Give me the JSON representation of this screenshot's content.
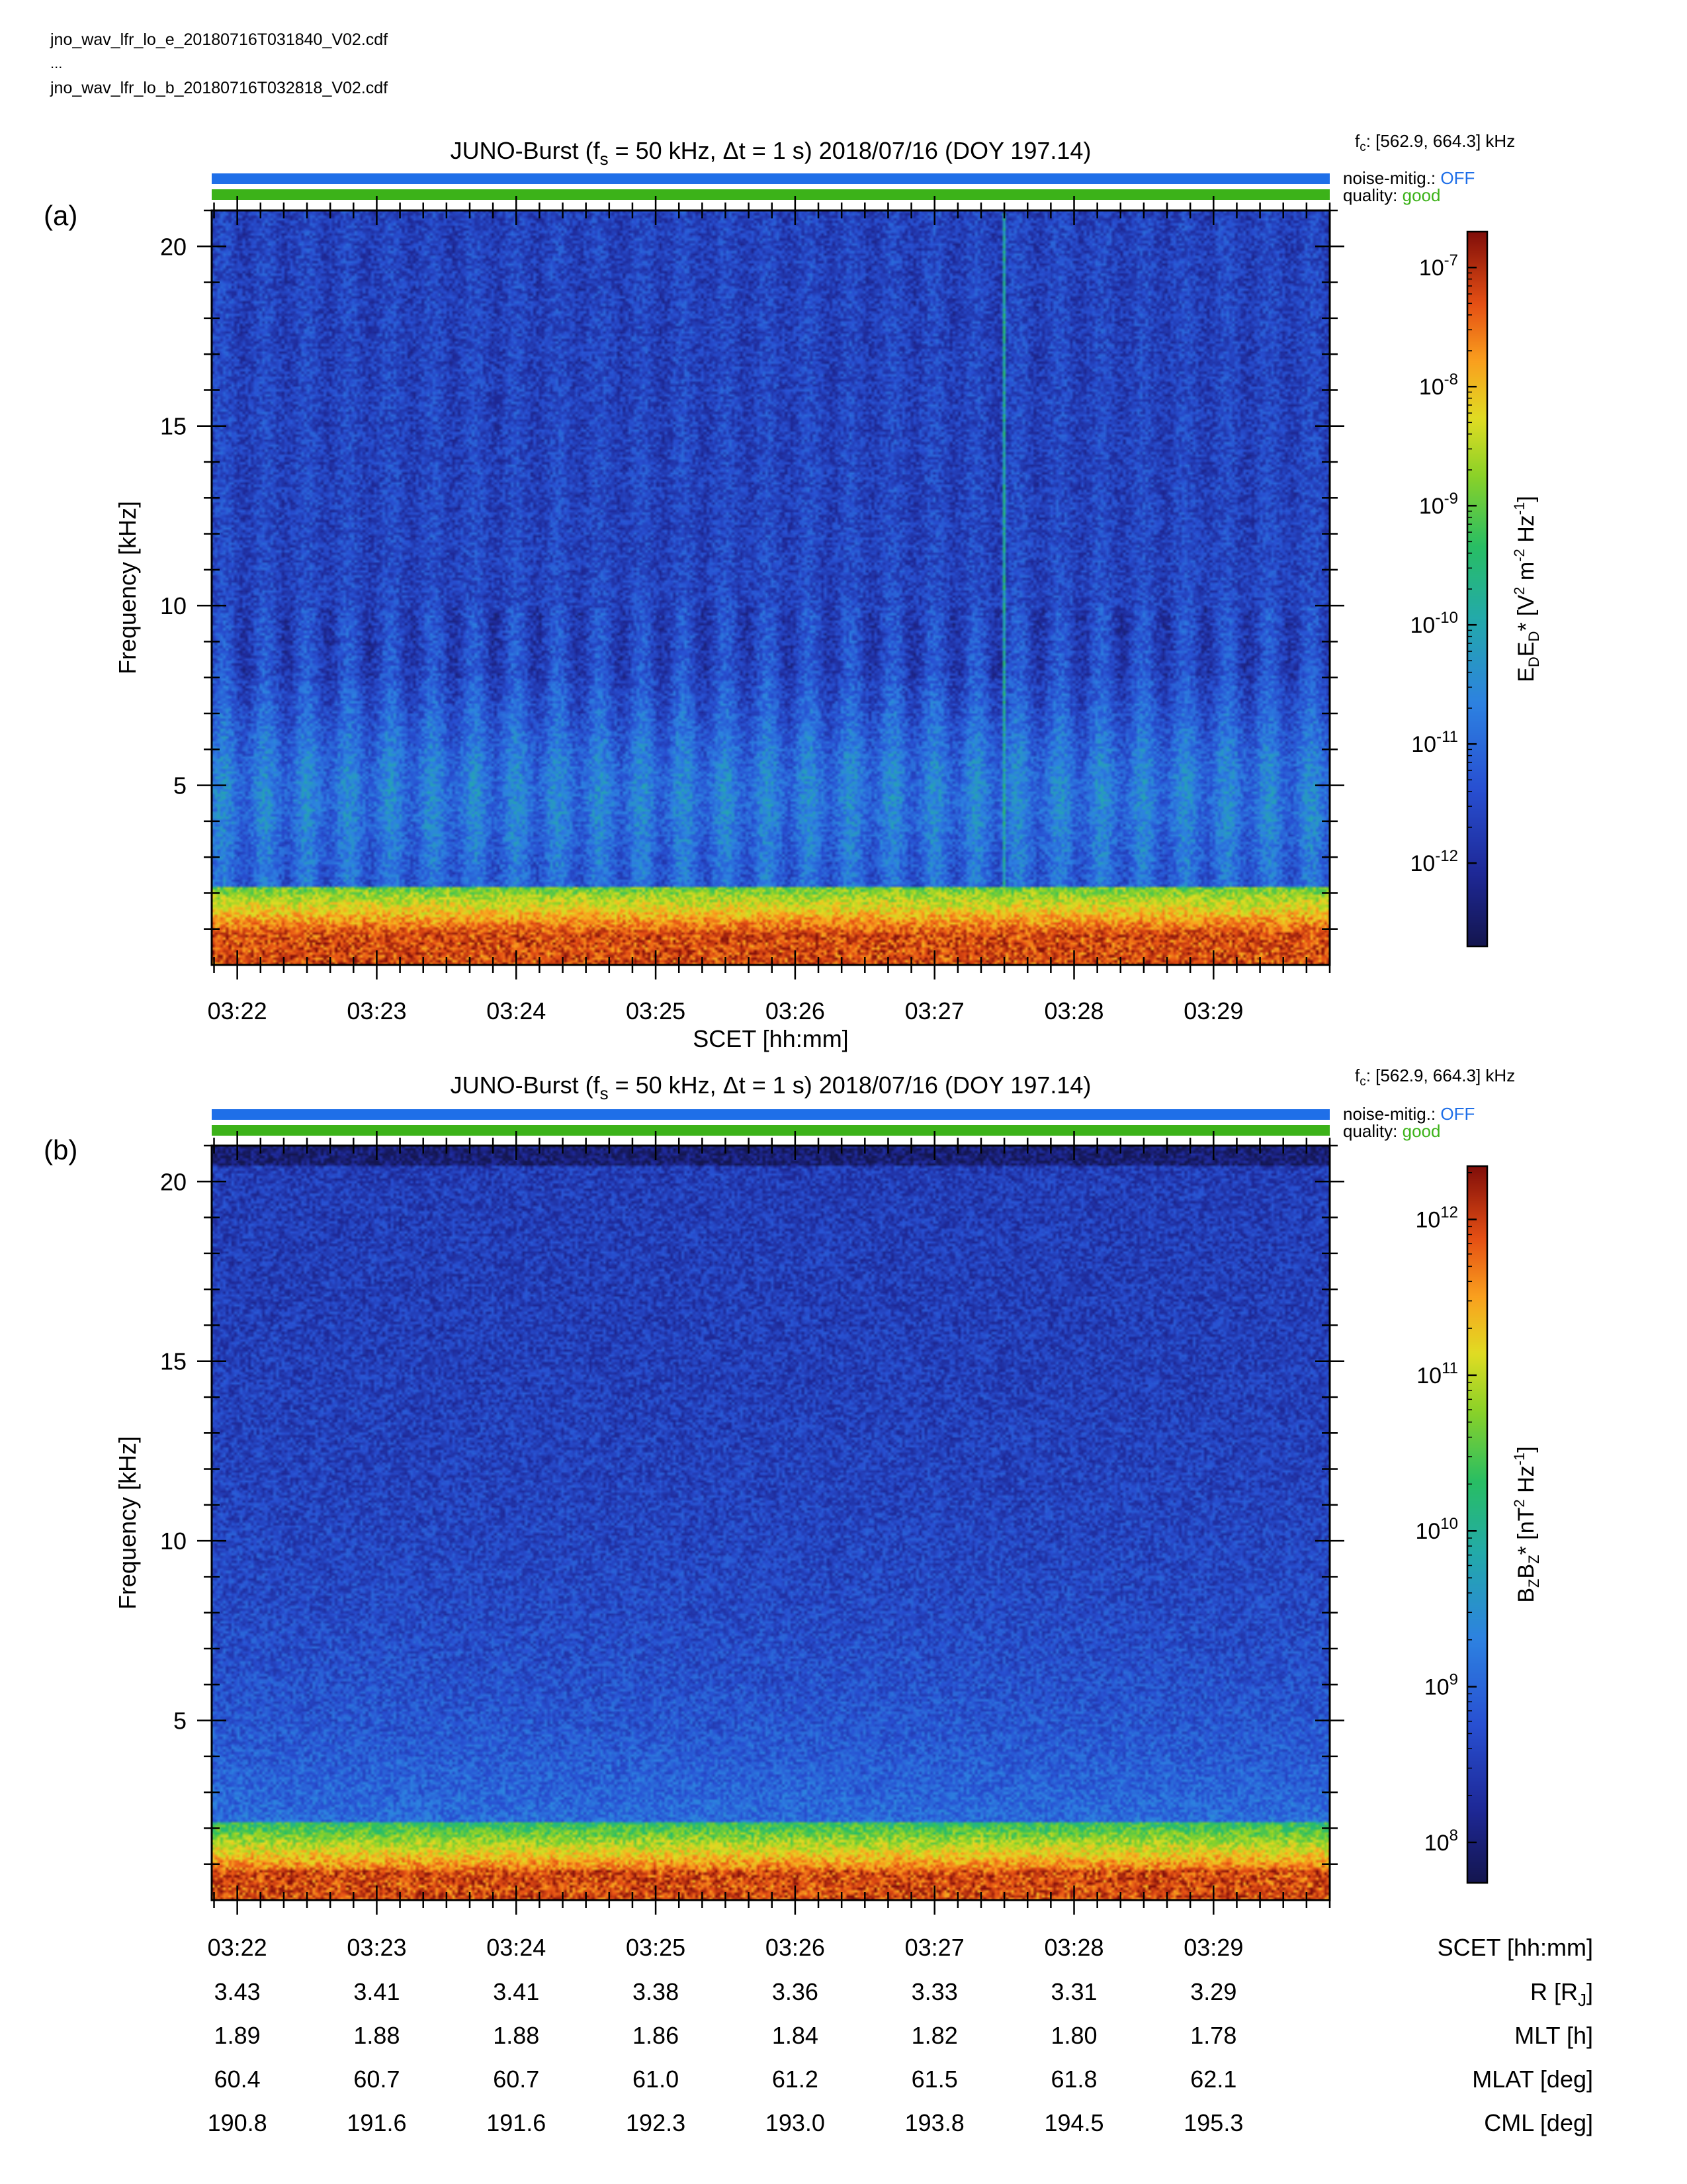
{
  "header": {
    "file_e": "jno_wav_lfr_lo_e_20180716T031840_V02.cdf",
    "ellipsis": "...",
    "file_b": "jno_wav_lfr_lo_b_20180716T032818_V02.cdf"
  },
  "colors": {
    "noise_bar": "#1f6fe8",
    "quality_bar": "#3cb219",
    "off_text": "#1f6fe8",
    "good_text": "#3cb219"
  },
  "chart_data": [
    {
      "type": "heatmap",
      "panel_label": "(a)",
      "title": "JUNO-Burst (fs = 50 kHz, Δt = 1 s)  2018/07/16 (DOY 197.14)",
      "fc": "[562.9, 664.3] kHz",
      "noise_mitig_label": "noise-mitig.:",
      "noise_mitig_value": "OFF",
      "quality_label": "quality:",
      "quality_value": "good",
      "ylabel": "Frequency [kHz]",
      "xlabel": "SCET [hh:mm]",
      "x_ticks": [
        "03:22",
        "03:23",
        "03:24",
        "03:25",
        "03:26",
        "03:27",
        "03:28",
        "03:29"
      ],
      "xlim": [
        "03:21:49",
        "03:29:50"
      ],
      "ylim": [
        0,
        21
      ],
      "y_ticks": [
        5,
        10,
        15,
        20
      ],
      "colorbar_label": "EDED* [V² m⁻² Hz⁻¹]",
      "colorbar_scale": "log",
      "colorbar_range": [
        2e-13,
        2e-07
      ],
      "colorbar_ticks": [
        "10-7",
        "10-8",
        "10-9",
        "10-10",
        "10-11",
        "10-12"
      ]
    },
    {
      "type": "heatmap",
      "panel_label": "(b)",
      "title": "JUNO-Burst (fs = 50 kHz, Δt = 1 s)  2018/07/16 (DOY 197.14)",
      "fc": "[562.9, 664.3] kHz",
      "noise_mitig_label": "noise-mitig.:",
      "noise_mitig_value": "OFF",
      "quality_label": "quality:",
      "quality_value": "good",
      "ylabel": "Frequency [kHz]",
      "xlim": [
        "03:21:49",
        "03:29:50"
      ],
      "ylim": [
        0,
        21
      ],
      "y_ticks": [
        5,
        10,
        15,
        20
      ],
      "colorbar_label": "BZBZ* [nT² Hz⁻¹]",
      "colorbar_scale": "log",
      "colorbar_range": [
        55000000.0,
        2200000000000.0
      ],
      "colorbar_ticks": [
        "1012",
        "1011",
        "1010",
        "109",
        "108"
      ]
    }
  ],
  "ephemeris": {
    "rows": [
      {
        "label": "SCET [hh:mm]",
        "values": [
          "03:22",
          "03:23",
          "03:24",
          "03:25",
          "03:26",
          "03:27",
          "03:28",
          "03:29"
        ]
      },
      {
        "label": "R [RJ]",
        "values": [
          "3.43",
          "3.41",
          "3.41",
          "3.38",
          "3.36",
          "3.33",
          "3.31",
          "3.29"
        ]
      },
      {
        "label": "MLT [h]",
        "values": [
          "1.89",
          "1.88",
          "1.88",
          "1.86",
          "1.84",
          "1.82",
          "1.80",
          "1.78"
        ]
      },
      {
        "label": "MLAT [deg]",
        "values": [
          "60.4",
          "60.7",
          "60.7",
          "61.0",
          "61.2",
          "61.5",
          "61.8",
          "62.1"
        ]
      },
      {
        "label": "CML [deg]",
        "values": [
          "190.8",
          "191.6",
          "191.6",
          "192.3",
          "193.0",
          "193.8",
          "194.5",
          "195.3"
        ]
      }
    ]
  }
}
